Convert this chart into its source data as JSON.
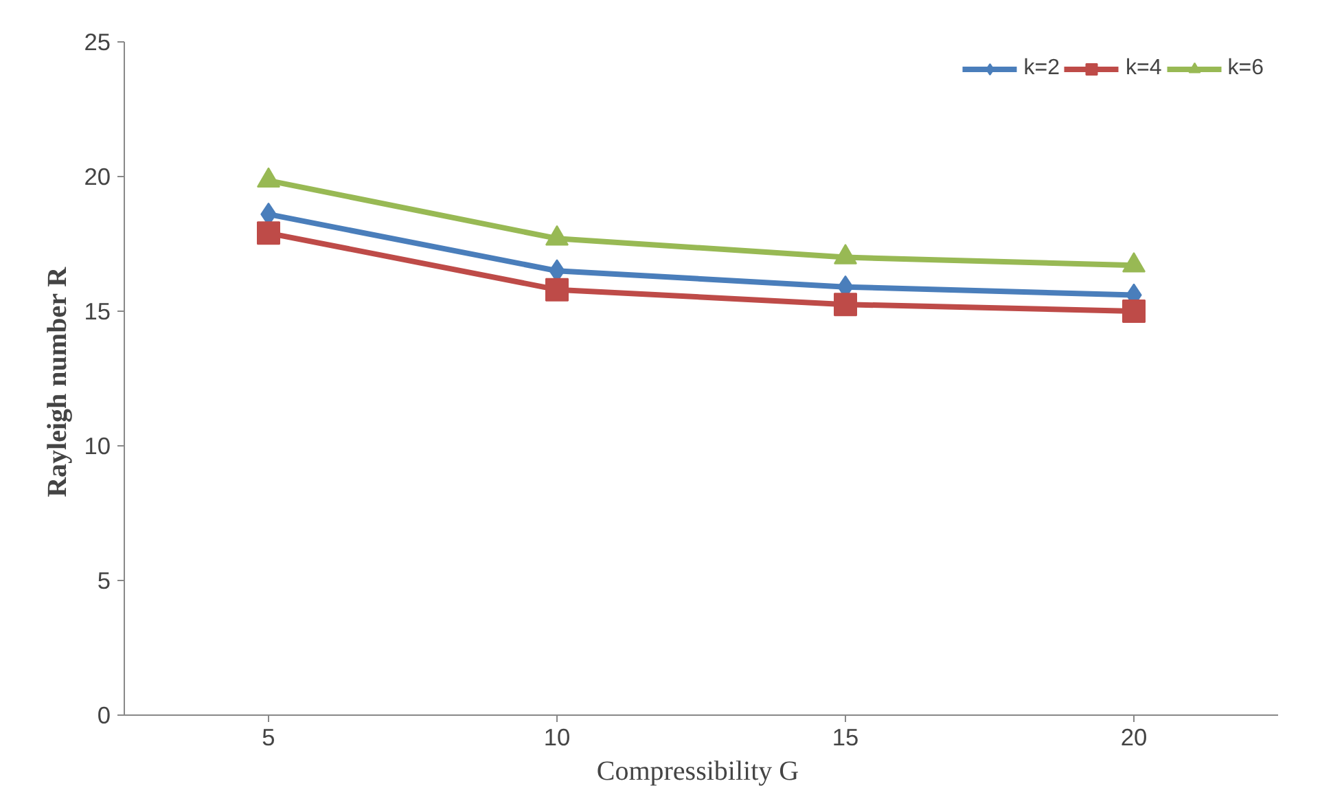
{
  "chart_data": {
    "type": "line",
    "xlabel": "Compressibility  G",
    "ylabel": "Rayleigh number  R",
    "categories": [
      "5",
      "10",
      "15",
      "20"
    ],
    "ylim": [
      0,
      25
    ],
    "yticks": [
      0,
      5,
      10,
      15,
      20,
      25
    ],
    "grid": false,
    "legend": "top right",
    "line_style": "solid",
    "series": [
      {
        "name": "k=2",
        "color": "#4a7ebb",
        "marker": "diamond",
        "values": [
          18.6,
          16.5,
          15.9,
          15.6
        ]
      },
      {
        "name": "k=4",
        "color": "#be4b48",
        "marker": "square",
        "values": [
          17.9,
          15.8,
          15.25,
          15.0
        ]
      },
      {
        "name": "k=6",
        "color": "#98b954",
        "marker": "triangle",
        "values": [
          19.85,
          17.7,
          17.0,
          16.7
        ]
      }
    ]
  }
}
